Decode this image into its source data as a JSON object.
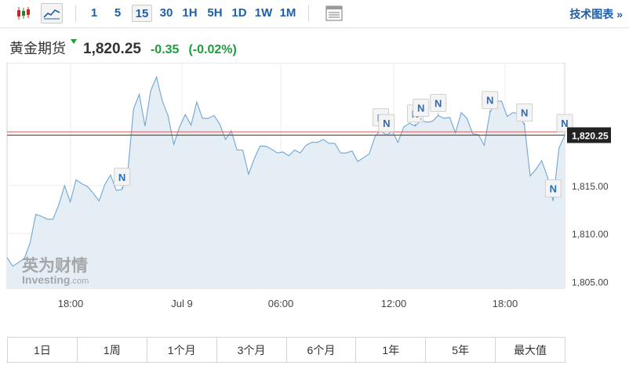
{
  "toolbar": {
    "icons": [
      "candlestick-icon",
      "area-chart-icon"
    ],
    "timeframes": [
      "1",
      "5",
      "15",
      "30",
      "1H",
      "5H",
      "1D",
      "1W",
      "1M"
    ],
    "active_timeframe": "15",
    "tech_chart_label": "技术图表 »"
  },
  "instrument": {
    "name": "黄金期货",
    "price": "1,820.25",
    "change": "-0.35",
    "change_pct": "(-0.02%)",
    "change_color": "#1c9e3c"
  },
  "watermark": {
    "line1": "英为财情",
    "line2": "Investing",
    "suffix": ".com"
  },
  "range_buttons": [
    "1日",
    "1周",
    "1个月",
    "3个月",
    "6个月",
    "1年",
    "5年",
    "最大值"
  ],
  "chart_data": {
    "type": "area",
    "x_tick_labels": [
      "18:00",
      "Jul 9",
      "06:00",
      "12:00",
      "18:00"
    ],
    "y_tick_labels": [
      "1,815.00",
      "1,810.00",
      "1,805.00"
    ],
    "y_ticks": [
      1815,
      1810,
      1805
    ],
    "ylim": [
      1804.3,
      1827.8
    ],
    "current_price_label": "1,820.25",
    "current_price": 1820.25,
    "reference_price": 1820.6,
    "values": [
      1807.5,
      1806.6,
      1807.0,
      1807.4,
      1809.0,
      1812.0,
      1811.8,
      1811.5,
      1811.5,
      1813.0,
      1815.0,
      1813.3,
      1815.6,
      1815.2,
      1814.9,
      1814.2,
      1813.4,
      1815.1,
      1816.1,
      1814.5,
      1814.6,
      1816.4,
      1823.0,
      1824.5,
      1821.2,
      1824.9,
      1826.3,
      1823.8,
      1822.3,
      1819.3,
      1821.1,
      1822.4,
      1821.3,
      1823.7,
      1822.0,
      1822.0,
      1822.3,
      1821.4,
      1819.8,
      1820.7,
      1818.7,
      1818.7,
      1816.2,
      1817.8,
      1819.1,
      1819.1,
      1818.8,
      1818.4,
      1818.5,
      1818.1,
      1818.7,
      1818.4,
      1819.2,
      1819.5,
      1819.5,
      1819.8,
      1819.4,
      1819.4,
      1818.4,
      1818.4,
      1818.6,
      1817.5,
      1817.9,
      1818.3,
      1820.1,
      1820.8,
      1820.2,
      1820.7,
      1819.5,
      1821.1,
      1821.5,
      1821.2,
      1821.8,
      1821.6,
      1821.7,
      1822.3,
      1822.0,
      1822.1,
      1820.5,
      1822.6,
      1822.0,
      1820.4,
      1820.3,
      1819.2,
      1822.6,
      1823.8,
      1823.8,
      1822.2,
      1822.6,
      1822.5,
      1821.3,
      1816.0,
      1816.7,
      1817.6,
      1815.9,
      1813.4,
      1818.9,
      1820.2
    ],
    "news_markers": [
      {
        "label": "N",
        "index": 20
      },
      {
        "label": "N",
        "index": 65
      },
      {
        "label": "N",
        "index": 66
      },
      {
        "label": "N",
        "index": 71
      },
      {
        "label": "N",
        "index": 72
      },
      {
        "label": "N",
        "index": 75
      },
      {
        "label": "N",
        "index": 84
      },
      {
        "label": "N",
        "index": 90
      },
      {
        "label": "N",
        "index": 95
      },
      {
        "label": "N",
        "index": 97
      }
    ],
    "colors": {
      "line": "#6fa6d6",
      "fill": "#e5eef5",
      "current_line": "#555555",
      "reference_line": "#e05a5a",
      "price_tag_bg": "#222222"
    }
  }
}
